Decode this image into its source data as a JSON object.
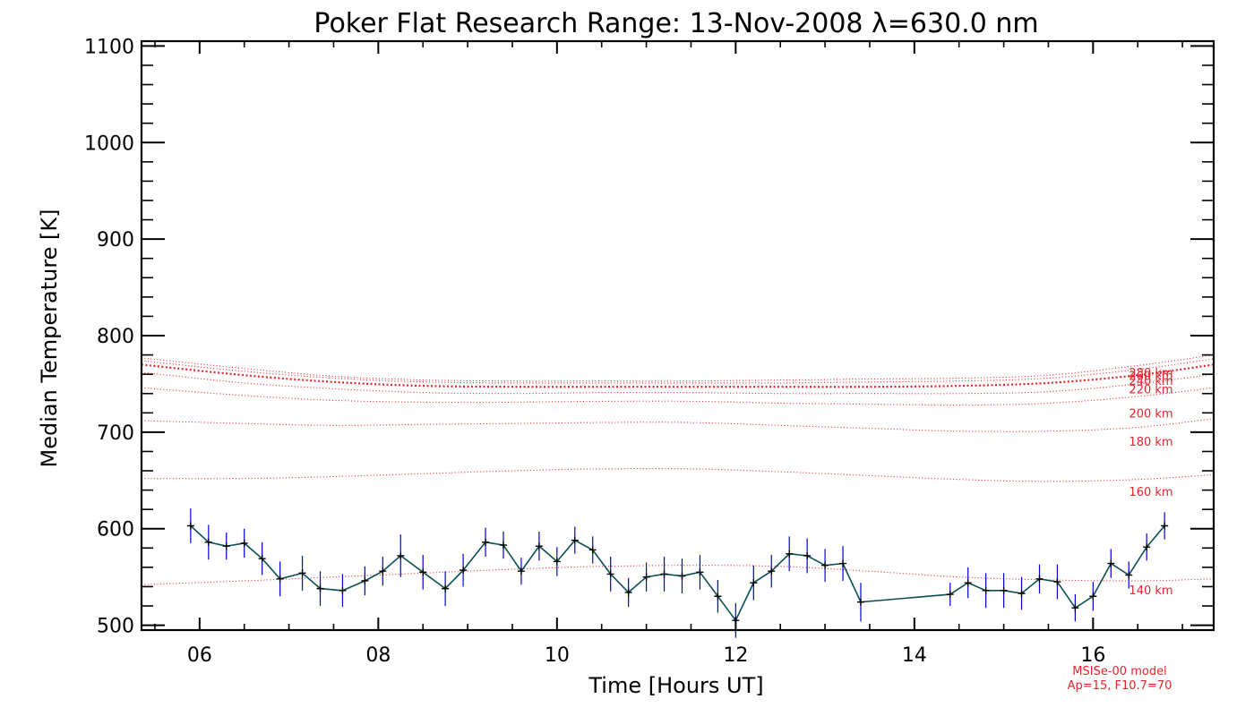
{
  "chart_data": {
    "type": "line",
    "title": "Poker Flat Research Range: 13-Nov-2008 λ=630.0 nm",
    "xlabel": "Time [Hours UT]",
    "ylabel": "Median Temperature [K]",
    "xlim": [
      5.35,
      17.35
    ],
    "ylim": [
      495,
      1105
    ],
    "x_ticks": [
      6,
      8,
      10,
      12,
      14,
      16
    ],
    "x_tick_labels": [
      "06",
      "08",
      "10",
      "12",
      "14",
      "16"
    ],
    "y_ticks": [
      500,
      600,
      700,
      800,
      900,
      1000,
      1100
    ],
    "y_tick_labels": [
      "500",
      "600",
      "700",
      "800",
      "900",
      "1000",
      "1100"
    ],
    "grid": false,
    "measured": {
      "x": [
        5.9,
        6.1,
        6.3,
        6.5,
        6.7,
        6.9,
        7.15,
        7.35,
        7.6,
        7.85,
        8.05,
        8.25,
        8.5,
        8.75,
        8.95,
        9.2,
        9.4,
        9.6,
        9.8,
        10.0,
        10.2,
        10.4,
        10.6,
        10.8,
        11.0,
        11.2,
        11.4,
        11.6,
        11.8,
        12.0,
        12.2,
        12.4,
        12.6,
        12.8,
        13.0,
        13.2,
        13.4,
        14.4,
        14.6,
        14.8,
        15.0,
        15.2,
        15.4,
        15.6,
        15.8,
        16.0,
        16.2,
        16.4,
        16.6,
        16.8
      ],
      "y": [
        603,
        586,
        582,
        585,
        569,
        548,
        554,
        538,
        536,
        546,
        556,
        572,
        555,
        538,
        557,
        586,
        583,
        556,
        582,
        566,
        588,
        578,
        553,
        534,
        550,
        553,
        551,
        555,
        530,
        505,
        544,
        556,
        574,
        572,
        562,
        564,
        524,
        532,
        544,
        536,
        536,
        533,
        548,
        545,
        518,
        530,
        564,
        552,
        581,
        603
      ],
      "err": [
        18,
        18,
        14,
        15,
        17,
        18,
        18,
        18,
        17,
        15,
        15,
        22,
        18,
        18,
        17,
        15,
        14,
        14,
        15,
        15,
        14,
        14,
        18,
        15,
        15,
        18,
        18,
        18,
        17,
        18,
        18,
        17,
        18,
        18,
        17,
        18,
        20,
        12,
        16,
        18,
        18,
        17,
        15,
        18,
        14,
        15,
        15,
        14,
        14,
        14
      ],
      "line_color": "#0b4f55",
      "marker_color": "#000000",
      "errorbar_color": "#0000dd"
    },
    "model_curves": {
      "color": "#e8242c",
      "x": [
        5.35,
        6.5,
        7.5,
        8.5,
        9.5,
        10.5,
        11.5,
        12.5,
        13.5,
        14.5,
        15.5,
        16.5,
        17.35
      ],
      "series": [
        {
          "label": "140 km",
          "y": [
            542,
            546,
            550,
            554,
            558,
            561,
            562,
            561,
            556,
            550,
            547,
            546,
            548
          ]
        },
        {
          "label": "160 km",
          "y": [
            652,
            652,
            654,
            657,
            660,
            662,
            662,
            659,
            655,
            651,
            649,
            651,
            656
          ]
        },
        {
          "label": "180 km",
          "y": [
            712,
            709,
            707,
            708,
            709,
            710,
            710,
            707,
            704,
            701,
            701,
            705,
            714
          ]
        },
        {
          "label": "200 km",
          "y": [
            746,
            738,
            733,
            731,
            731,
            732,
            732,
            730,
            729,
            728,
            730,
            737,
            746
          ]
        },
        {
          "label": "220 km",
          "y": [
            762,
            751,
            745,
            741,
            740,
            741,
            741,
            740,
            740,
            740,
            742,
            750,
            760
          ]
        },
        {
          "label": "240 km",
          "y": [
            770,
            759,
            752,
            748,
            747,
            747,
            747,
            747,
            747,
            748,
            751,
            759,
            770
          ]
        },
        {
          "label": "260 km",
          "y": [
            774,
            763,
            756,
            752,
            751,
            751,
            751,
            751,
            752,
            753,
            756,
            765,
            776
          ]
        },
        {
          "label": "280 km",
          "y": [
            777,
            766,
            758,
            754,
            753,
            753,
            753,
            754,
            755,
            756,
            759,
            769,
            780
          ]
        }
      ],
      "thick_index": 5
    },
    "annotation_lines": [
      "MSISe-00 model",
      "Ap=15, F10.7=70"
    ]
  }
}
